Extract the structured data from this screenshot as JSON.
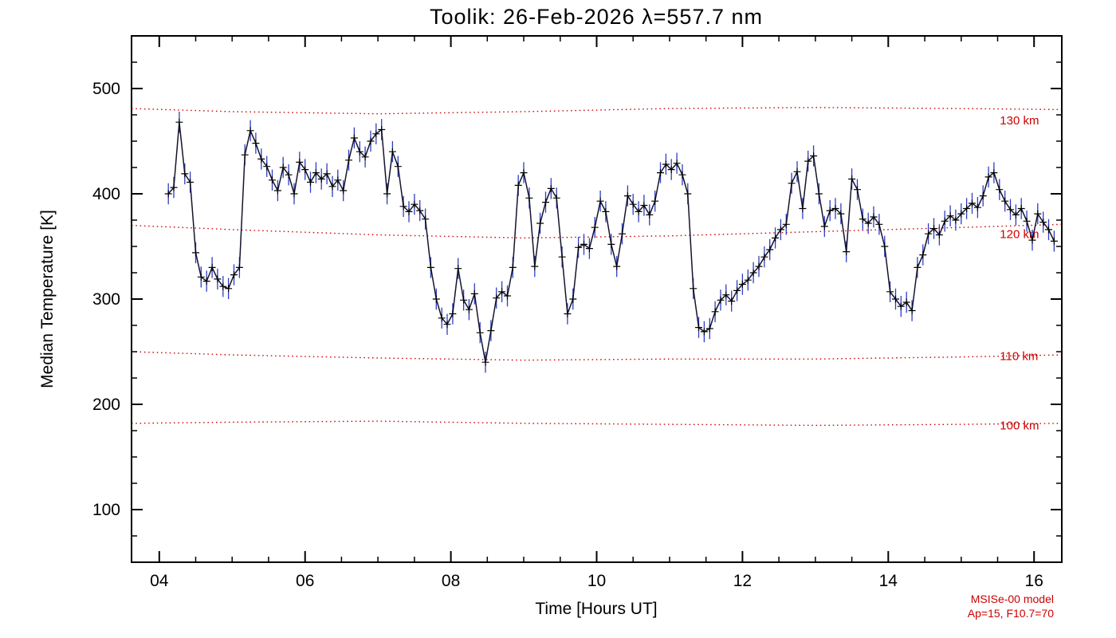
{
  "chart_data": {
    "type": "line",
    "title": "Toolik: 26-Feb-2026 λ=557.7 nm",
    "xlabel": "Time [Hours UT]",
    "ylabel": "Median Temperature [K]",
    "xlim": [
      3.62,
      16.38
    ],
    "ylim": [
      50,
      550
    ],
    "grid": false,
    "x_major_ticks": [
      4,
      6,
      8,
      10,
      12,
      14,
      16
    ],
    "x_tick_labels": [
      "04",
      "06",
      "08",
      "10",
      "12",
      "14",
      "16"
    ],
    "x_minor_step": 0.5,
    "y_major_ticks": [
      100,
      200,
      300,
      400,
      500
    ],
    "y_tick_labels": [
      "100",
      "200",
      "300",
      "400",
      "500"
    ],
    "y_minor_step": 25,
    "colors": {
      "data_line": "#14142e",
      "error_bars": "#2e3ec4",
      "markers": "#000000",
      "model": "#cc0000",
      "axis": "#000000",
      "background": "#ffffff"
    },
    "series": [
      {
        "name": "median_temperature",
        "marker": "plus",
        "yerr": 10,
        "x": [
          4.125,
          4.2,
          4.275,
          4.35,
          4.425,
          4.5,
          4.575,
          4.65,
          4.725,
          4.8,
          4.875,
          4.95,
          5.025,
          5.1,
          5.175,
          5.25,
          5.325,
          5.4,
          5.475,
          5.55,
          5.625,
          5.7,
          5.775,
          5.85,
          5.925,
          6.0,
          6.075,
          6.15,
          6.225,
          6.3,
          6.375,
          6.45,
          6.525,
          6.6,
          6.675,
          6.75,
          6.825,
          6.9,
          6.975,
          7.05,
          7.125,
          7.2,
          7.275,
          7.35,
          7.425,
          7.5,
          7.575,
          7.65,
          7.725,
          7.8,
          7.875,
          7.95,
          8.025,
          8.1,
          8.175,
          8.25,
          8.325,
          8.4,
          8.475,
          8.55,
          8.625,
          8.7,
          8.775,
          8.85,
          8.925,
          9.0,
          9.075,
          9.15,
          9.225,
          9.3,
          9.375,
          9.45,
          9.525,
          9.6,
          9.675,
          9.75,
          9.825,
          9.9,
          9.975,
          10.05,
          10.125,
          10.2,
          10.275,
          10.35,
          10.425,
          10.5,
          10.575,
          10.65,
          10.725,
          10.8,
          10.875,
          10.95,
          11.025,
          11.1,
          11.175,
          11.25,
          11.325,
          11.4,
          11.475,
          11.55,
          11.625,
          11.7,
          11.775,
          11.85,
          11.925,
          12.0,
          12.075,
          12.15,
          12.225,
          12.3,
          12.375,
          12.45,
          12.525,
          12.6,
          12.675,
          12.75,
          12.825,
          12.9,
          12.975,
          13.05,
          13.125,
          13.2,
          13.275,
          13.35,
          13.425,
          13.5,
          13.575,
          13.65,
          13.725,
          13.8,
          13.875,
          13.95,
          14.025,
          14.1,
          14.175,
          14.25,
          14.325,
          14.4,
          14.475,
          14.55,
          14.625,
          14.7,
          14.775,
          14.85,
          14.925,
          15.0,
          15.075,
          15.15,
          15.225,
          15.3,
          15.375,
          15.45,
          15.525,
          15.6,
          15.675,
          15.75,
          15.825,
          15.9,
          15.975,
          16.05,
          16.125,
          16.2,
          16.275
        ],
        "y": [
          400,
          406,
          468,
          419,
          411,
          344,
          321,
          317,
          330,
          319,
          312,
          310,
          323,
          330,
          437,
          460,
          448,
          433,
          426,
          413,
          403,
          425,
          418,
          400,
          430,
          423,
          411,
          420,
          414,
          419,
          407,
          413,
          403,
          432,
          453,
          440,
          435,
          450,
          457,
          461,
          400,
          440,
          426,
          388,
          383,
          390,
          384,
          376,
          330,
          300,
          282,
          276,
          286,
          329,
          299,
          290,
          305,
          268,
          240,
          270,
          301,
          307,
          303,
          330,
          408,
          420,
          396,
          331,
          372,
          392,
          405,
          396,
          340,
          286,
          300,
          349,
          352,
          348,
          368,
          393,
          383,
          352,
          331,
          362,
          398,
          390,
          383,
          389,
          380,
          393,
          420,
          428,
          423,
          429,
          418,
          400,
          310,
          273,
          269,
          272,
          288,
          299,
          304,
          298,
          308,
          314,
          318,
          325,
          331,
          340,
          347,
          358,
          366,
          371,
          410,
          421,
          386,
          431,
          436,
          400,
          369,
          384,
          386,
          381,
          345,
          414,
          404,
          376,
          372,
          378,
          371,
          350,
          307,
          300,
          293,
          297,
          289,
          330,
          342,
          362,
          367,
          361,
          374,
          379,
          375,
          381,
          386,
          391,
          387,
          398,
          416,
          420,
          404,
          393,
          385,
          380,
          386,
          374,
          356,
          381,
          373,
          366,
          355
        ]
      }
    ],
    "model_curves": [
      {
        "label": "130 km",
        "label_pos": [
          15.53,
          466
        ],
        "x": [
          3.62,
          5,
          7,
          9,
          11,
          13,
          15,
          16.38
        ],
        "y": [
          481,
          478,
          476,
          478,
          481,
          482,
          481,
          480
        ]
      },
      {
        "label": "120 km",
        "label_pos": [
          15.53,
          358
        ],
        "x": [
          3.62,
          5,
          7,
          9,
          11,
          13,
          15,
          16.38
        ],
        "y": [
          370,
          366,
          361,
          358,
          360,
          364,
          368,
          371
        ]
      },
      {
        "label": "110 km",
        "label_pos": [
          15.53,
          242
        ],
        "x": [
          3.62,
          5,
          7,
          9,
          11,
          13,
          15,
          16.38
        ],
        "y": [
          250,
          247,
          244,
          242,
          243,
          243,
          245,
          247
        ]
      },
      {
        "label": "100 km",
        "label_pos": [
          15.53,
          176
        ],
        "x": [
          3.62,
          5,
          7,
          9,
          11,
          13,
          15,
          16.38
        ],
        "y": [
          182,
          183,
          184,
          182,
          181,
          180,
          181,
          182
        ]
      }
    ],
    "credits": {
      "line1": "MSISe-00 model",
      "line2": "Ap=15, F10.7=70"
    }
  }
}
